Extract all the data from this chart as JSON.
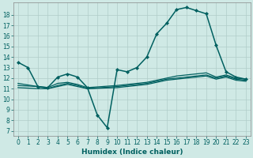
{
  "xlabel": "Humidex (Indice chaleur)",
  "xlim": [
    -0.5,
    23.5
  ],
  "ylim": [
    6.5,
    19.2
  ],
  "yticks": [
    7,
    8,
    9,
    10,
    11,
    12,
    13,
    14,
    15,
    16,
    17,
    18
  ],
  "xticks": [
    0,
    1,
    2,
    3,
    4,
    5,
    6,
    7,
    8,
    9,
    10,
    11,
    12,
    13,
    14,
    15,
    16,
    17,
    18,
    19,
    20,
    21,
    22,
    23
  ],
  "bg_color": "#cfe9e5",
  "grid_color": "#b0cdc9",
  "line_color": "#006060",
  "line1": {
    "x": [
      0,
      1,
      2,
      3,
      4,
      5,
      6,
      7,
      8,
      9,
      10,
      11,
      12,
      13,
      14,
      15,
      16,
      17,
      18,
      19,
      20,
      21,
      22,
      23
    ],
    "y": [
      13.5,
      13.0,
      11.2,
      11.1,
      12.1,
      12.4,
      12.1,
      11.1,
      8.5,
      7.3,
      12.8,
      12.6,
      13.0,
      14.0,
      16.2,
      17.2,
      18.5,
      18.7,
      18.4,
      18.1,
      15.1,
      12.6,
      12.1,
      11.9
    ],
    "marker": "D",
    "markersize": 2.0,
    "linewidth": 1.1
  },
  "line2": {
    "x": [
      0,
      2,
      3,
      4,
      5,
      6,
      7,
      10,
      11,
      12,
      13,
      14,
      15,
      16,
      17,
      18,
      19,
      20,
      21,
      22,
      23
    ],
    "y": [
      11.5,
      11.2,
      11.1,
      11.5,
      11.6,
      11.4,
      11.1,
      11.3,
      11.4,
      11.5,
      11.6,
      11.8,
      12.0,
      12.2,
      12.3,
      12.4,
      12.5,
      12.1,
      12.3,
      12.0,
      11.9
    ],
    "marker": null,
    "linewidth": 0.9
  },
  "line3": {
    "x": [
      0,
      2,
      3,
      4,
      5,
      6,
      7,
      10,
      11,
      12,
      13,
      14,
      15,
      16,
      17,
      18,
      19,
      20,
      21,
      22,
      23
    ],
    "y": [
      11.3,
      11.2,
      11.0,
      11.3,
      11.5,
      11.3,
      11.0,
      11.2,
      11.3,
      11.4,
      11.5,
      11.7,
      11.9,
      12.0,
      12.1,
      12.2,
      12.3,
      12.0,
      12.2,
      11.9,
      11.8
    ],
    "marker": null,
    "linewidth": 0.9
  },
  "line4": {
    "x": [
      0,
      2,
      3,
      4,
      5,
      6,
      7,
      10,
      11,
      12,
      13,
      14,
      15,
      16,
      17,
      18,
      19,
      20,
      21,
      22,
      23
    ],
    "y": [
      11.1,
      11.0,
      11.0,
      11.2,
      11.4,
      11.2,
      11.0,
      11.1,
      11.2,
      11.3,
      11.4,
      11.6,
      11.8,
      11.9,
      12.0,
      12.1,
      12.2,
      11.9,
      12.1,
      11.8,
      11.7
    ],
    "marker": null,
    "linewidth": 0.9
  }
}
